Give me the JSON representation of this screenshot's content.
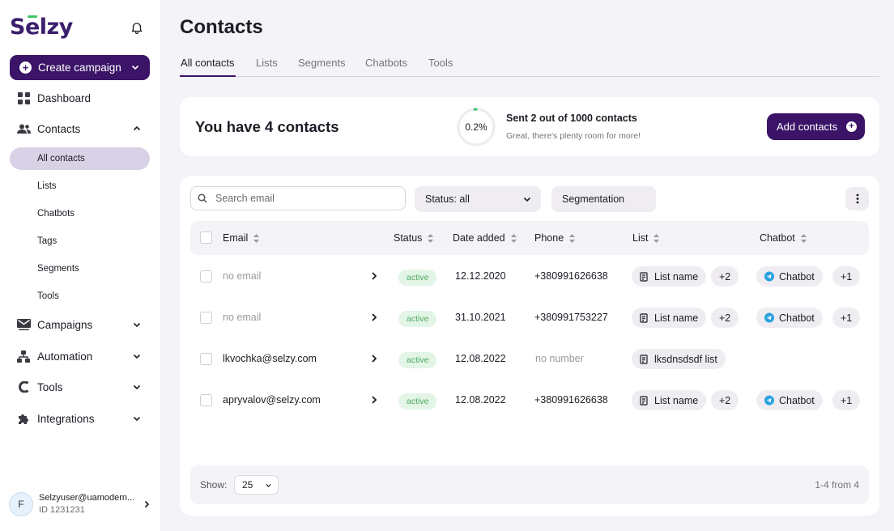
{
  "sidebar": {
    "logo": "Selzy",
    "create_label": "Create campaign",
    "nav": {
      "dashboard": "Dashboard",
      "contacts": "Contacts",
      "campaigns": "Campaigns",
      "automation": "Automation",
      "tools": "Tools",
      "integrations": "Integrations"
    },
    "contacts_sub": {
      "all": "All contacts",
      "lists": "Lists",
      "chatbots": "Chatbots",
      "tags": "Tags",
      "segments": "Segments",
      "tools": "Tools"
    },
    "user": {
      "initial": "F",
      "email": "Selzyuser@uamodern...",
      "id": "ID 1231231"
    }
  },
  "page_title": "Contacts",
  "tabs": [
    "All contacts",
    "Lists",
    "Segments",
    "Chatbots",
    "Tools"
  ],
  "summary": {
    "title": "You have 4 contacts",
    "progress_label": "0.2%",
    "progress_fraction": 0.002,
    "sent_title": "Sent 2 out of 1000 contacts",
    "sent_sub": "Great, there's plenty room for more!",
    "add_label": "Add contacts"
  },
  "toolbar": {
    "search_placeholder": "Search email",
    "status_label": "Status: all",
    "segmentation_label": "Segmentation"
  },
  "columns": {
    "email": "Email",
    "status": "Status",
    "date_added": "Date added",
    "phone": "Phone",
    "list": "List",
    "chatbot": "Chatbot"
  },
  "rows": [
    {
      "email": "no email",
      "status": "active",
      "date": "12.12.2020",
      "phone": "+380991626638",
      "list": "List name",
      "list_more": "+2",
      "chatbot": "Chatbot",
      "chatbot_more": "+1"
    },
    {
      "email": "no email",
      "status": "active",
      "date": "31.10.2021",
      "phone": "+380991753227",
      "list": "List name",
      "list_more": "+2",
      "chatbot": "Chatbot",
      "chatbot_more": "+1"
    },
    {
      "email": "lkvochka@selzy.com",
      "status": "active",
      "date": "12.08.2022",
      "phone": "no number",
      "list": "lksdnsdsdf list",
      "list_more": "",
      "chatbot": "",
      "chatbot_more": ""
    },
    {
      "email": "apryvalov@selzy.com",
      "status": "active",
      "date": "12.08.2022",
      "phone": "+380991626638",
      "list": "List name",
      "list_more": "+2",
      "chatbot": "Chatbot",
      "chatbot_more": "+1"
    }
  ],
  "footer": {
    "show_label": "Show:",
    "page_size": "25",
    "pager": "1-4 from 4"
  },
  "colors": {
    "brand": "#3b1468",
    "logo_accent": "#3ec36b",
    "active_badge_bg": "#e3f5e6",
    "active_badge_text": "#4faa60",
    "telegram": "#2aa3e0"
  }
}
